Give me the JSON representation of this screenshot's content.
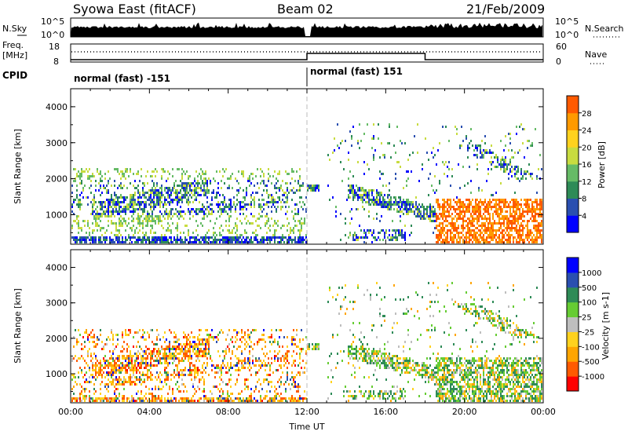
{
  "header": {
    "station": "Syowa East (fitACF)",
    "beam": "Beam 02",
    "date": "21/Feb/2009"
  },
  "top_panels": {
    "nsky_label": "N.Sky",
    "nsky_ticks": [
      "10^5",
      "10^0"
    ],
    "nsearch_label": "N.Search",
    "freq_label": "Freq.",
    "freq_unit": "[MHz]",
    "freq_ticks": [
      "18",
      "8"
    ],
    "nave_ticks": [
      "60",
      "0"
    ],
    "nave_label": "Nave",
    "cpid_label": "CPID",
    "cpid_segments": [
      {
        "label": "normal (fast) -151",
        "start": "00:00",
        "end": "12:00"
      },
      {
        "label": "normal (fast) 151",
        "start": "12:00",
        "end": "24:00"
      }
    ]
  },
  "colors": {
    "power_scale": [
      "#0000ff",
      "#2a4fb0",
      "#2e8b57",
      "#66bb66",
      "#c8dc40",
      "#ffd21e",
      "#ff9a00",
      "#ff5a00",
      "#ff0000"
    ],
    "velocity_scale": [
      "#ff0000",
      "#ff5a00",
      "#ffa500",
      "#ffd21e",
      "#bebebe",
      "#66cc33",
      "#2e8b57",
      "#2a4fb0",
      "#0000ff"
    ]
  },
  "chart_data": [
    {
      "type": "heatmap",
      "xlabel": "",
      "ylabel": "Slant Range [km]",
      "xlim": [
        "00:00",
        "24:00"
      ],
      "ylim": [
        180,
        4500
      ],
      "y_ticks": [
        1000,
        2000,
        3000,
        4000
      ],
      "x_ticks": [
        "00:00",
        "04:00",
        "08:00",
        "12:00",
        "16:00",
        "20:00",
        "00:00"
      ],
      "colorbar": {
        "label": "Power [dB]",
        "ticks": [
          4,
          8,
          12,
          16,
          20,
          24,
          28
        ],
        "range": [
          0,
          30
        ]
      },
      "vertical_marker_hour": 12
    },
    {
      "type": "heatmap",
      "xlabel": "Time UT",
      "ylabel": "Slant Range [km]",
      "xlim": [
        "00:00",
        "24:00"
      ],
      "ylim": [
        180,
        4500
      ],
      "y_ticks": [
        1000,
        2000,
        3000,
        4000
      ],
      "x_ticks": [
        "00:00",
        "04:00",
        "08:00",
        "12:00",
        "16:00",
        "20:00",
        "00:00"
      ],
      "colorbar": {
        "label": "Velocity [m s-1]",
        "ticks": [
          -1000,
          -500,
          -100,
          -25,
          25,
          100,
          500,
          1000
        ]
      },
      "vertical_marker_hour": 12
    }
  ]
}
